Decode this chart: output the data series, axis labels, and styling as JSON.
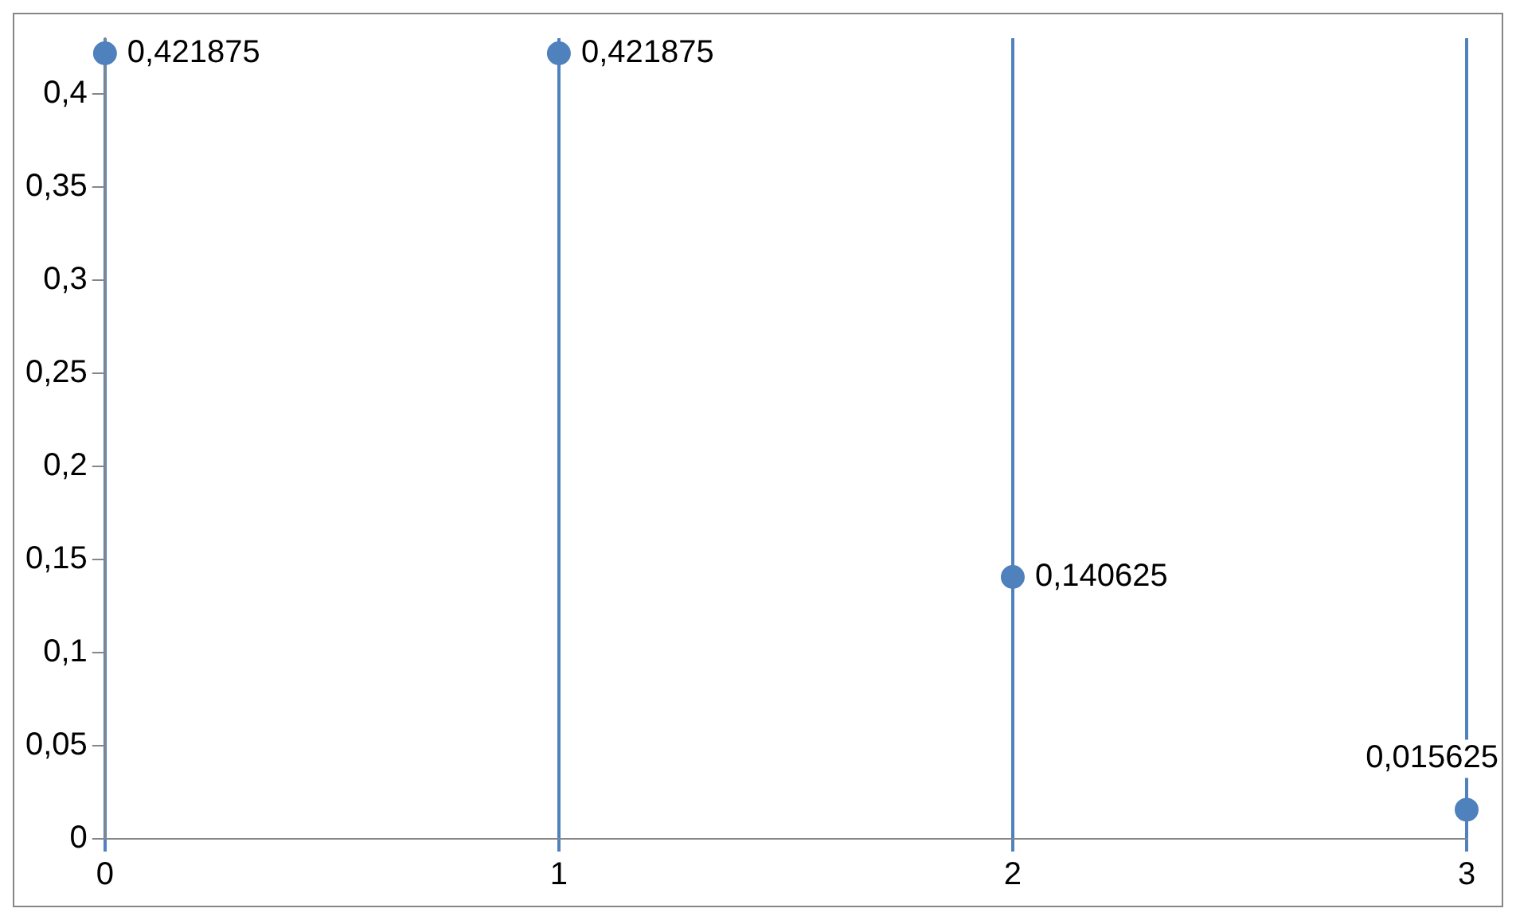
{
  "chart_data": {
    "type": "scatter",
    "x": [
      0,
      1,
      2,
      3
    ],
    "series": [
      {
        "color": "#4f81bd",
        "values": [
          0.421875,
          0.421875,
          0.140625,
          0.015625
        ],
        "value_labels": [
          "0,421875",
          "0,421875",
          "0,140625",
          "0,015625"
        ]
      }
    ],
    "xlim": [
      0,
      3
    ],
    "xticks": [
      0,
      1,
      2,
      3
    ],
    "ylim": [
      0,
      0.43
    ],
    "yticks": [
      0,
      {
        "value": 0.05,
        "label": "0,05"
      },
      {
        "value": 0.1,
        "label": "0,1"
      },
      {
        "value": 0.15,
        "label": "0,15"
      },
      {
        "value": 0.2,
        "label": "0,2"
      },
      {
        "value": 0.25,
        "label": "0,25"
      },
      {
        "value": 0.3,
        "label": "0,3"
      },
      {
        "value": 0.35,
        "label": "0,35"
      },
      {
        "value": 0.4,
        "label": "0,4"
      }
    ],
    "grid": "x",
    "legend": false,
    "marker": "circle"
  }
}
